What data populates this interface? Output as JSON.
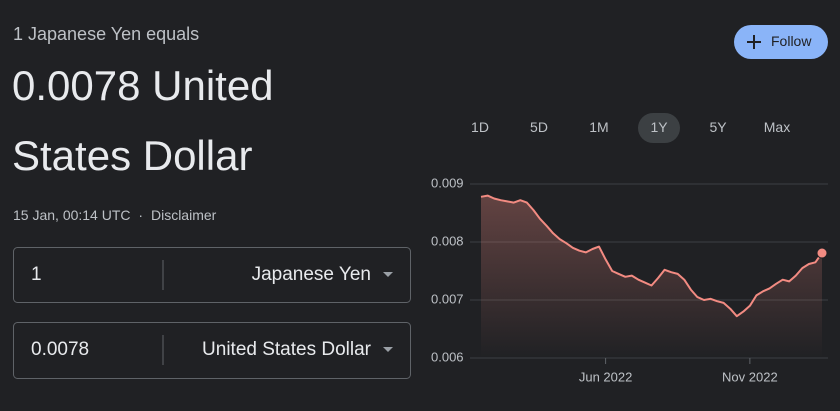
{
  "header": {
    "subtitle": "1 Japanese Yen equals",
    "value_lines": [
      "0.0078 United",
      "States Dollar"
    ],
    "timestamp": "15 Jan, 00:14 UTC",
    "separator": "·",
    "disclaimer": "Disclaimer"
  },
  "follow_button": {
    "label": "Follow"
  },
  "converter": {
    "rows": [
      {
        "amount": "1",
        "currency": "Japanese Yen"
      },
      {
        "amount": "0.0078",
        "currency": "United States Dollar"
      }
    ]
  },
  "ranges": {
    "options": [
      "1D",
      "5D",
      "1M",
      "1Y",
      "5Y",
      "Max"
    ],
    "selected": "1Y"
  },
  "chart_data": {
    "type": "line",
    "color": "#f28b82",
    "grid": true,
    "categories": [
      null,
      null,
      null,
      null,
      null,
      null,
      null,
      null,
      null,
      null,
      null,
      null,
      null,
      null,
      null,
      null,
      null,
      null,
      null,
      "Jun 2022",
      null,
      null,
      null,
      null,
      null,
      null,
      null,
      null,
      null,
      null,
      null,
      null,
      null,
      null,
      null,
      null,
      null,
      null,
      null,
      null,
      null,
      "Nov 2022",
      null,
      null,
      null,
      null,
      null,
      null,
      null,
      null,
      null,
      null,
      null
    ],
    "values": [
      0.00878,
      0.0088,
      0.00875,
      0.00872,
      0.0087,
      0.00868,
      0.00872,
      0.00868,
      0.00855,
      0.0084,
      0.00828,
      0.00815,
      0.00805,
      0.00798,
      0.0079,
      0.00785,
      0.00782,
      0.00788,
      0.00792,
      0.0077,
      0.0075,
      0.00745,
      0.0074,
      0.00742,
      0.00735,
      0.0073,
      0.00725,
      0.00738,
      0.00752,
      0.00748,
      0.00745,
      0.00735,
      0.00718,
      0.00705,
      0.007,
      0.00702,
      0.00698,
      0.00695,
      0.00685,
      0.00672,
      0.0068,
      0.0069,
      0.00708,
      0.00715,
      0.0072,
      0.00728,
      0.00735,
      0.00732,
      0.00742,
      0.00755,
      0.00762,
      0.00765,
      0.00781
    ],
    "ylim": [
      0.006,
      0.009
    ],
    "yticks": [
      0.006,
      0.007,
      0.008,
      0.009
    ]
  }
}
